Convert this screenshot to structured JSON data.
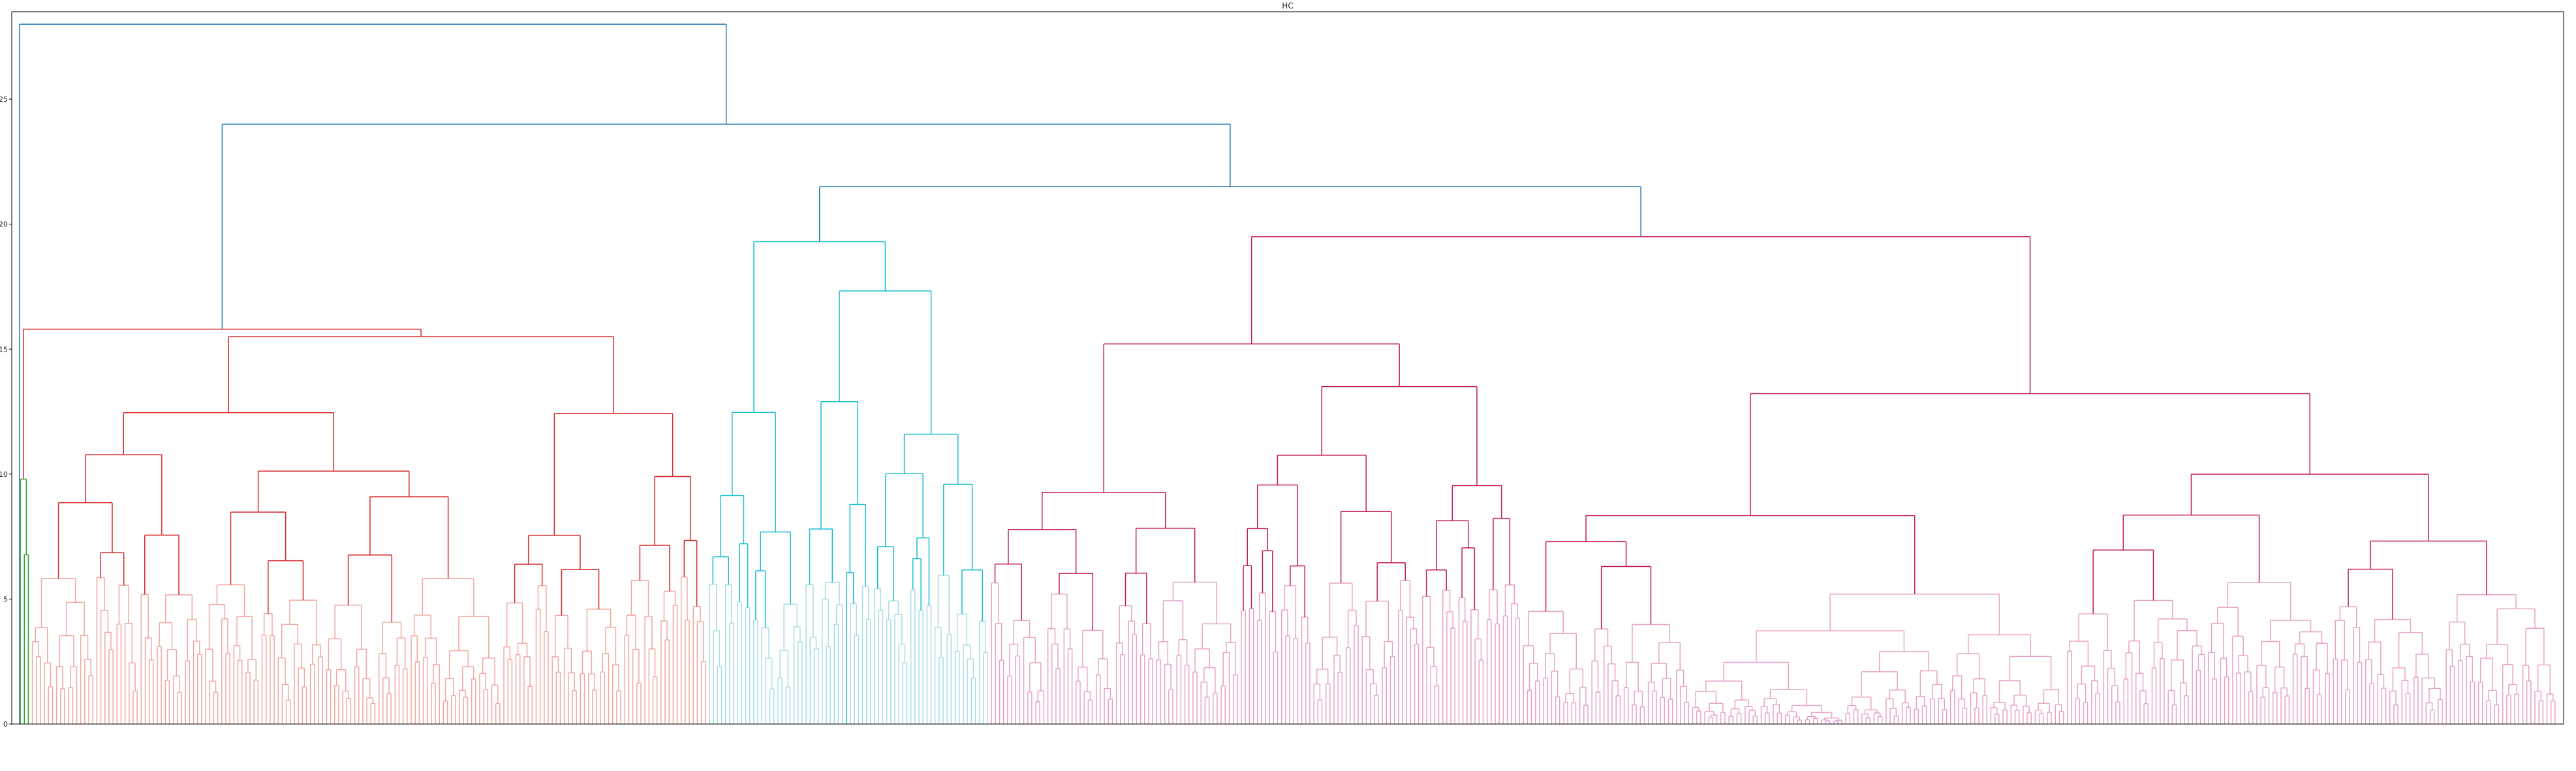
{
  "chart_data": {
    "type": "dendrogram",
    "title": "HC",
    "xlabel": "",
    "ylabel": "",
    "ylim": [
      0,
      28.5
    ],
    "yticks": [
      0,
      5,
      10,
      15,
      20,
      25
    ],
    "grid": false,
    "legend": "none",
    "leaf_count": 630,
    "leaf_labels_note": "",
    "merges": [
      {
        "id": "root",
        "height": 28.0,
        "children": [
          "left_branch",
          "right_branch"
        ],
        "color": "#1f77b4"
      },
      {
        "id": "left_branch",
        "height": 24.0,
        "children": [
          "cluster_red_top",
          "cluster_blue_pink"
        ],
        "color": "#1f77b4"
      },
      {
        "id": "cluster_blue_pink",
        "height": 21.5,
        "children": [
          "cluster_lightblue",
          "cluster_magenta"
        ],
        "color": "#1f77b4"
      },
      {
        "id": "cluster_red_top",
        "height": 15.5,
        "color": "#d62728"
      },
      {
        "id": "cluster_lightblue",
        "height": 19.3,
        "color": "#17becf"
      },
      {
        "id": "cluster_magenta",
        "height": 19.5,
        "color": "#c2185b"
      }
    ],
    "clusters": [
      {
        "name": "green",
        "leaves_from": 0,
        "leaves_to": 2,
        "top_height": 9.8,
        "color": "#2ca02c"
      },
      {
        "name": "red",
        "leaves_from": 3,
        "leaves_to": 170,
        "top_height": 15.5,
        "color": "#d62728"
      },
      {
        "name": "lightblue",
        "leaves_from": 171,
        "leaves_to": 240,
        "top_height": 19.3,
        "color": "#17becf"
      },
      {
        "name": "magenta",
        "leaves_from": 241,
        "leaves_to": 629,
        "top_height": 19.5,
        "color": "#c2185b"
      }
    ],
    "colors": {
      "link_above": "#1f77b4",
      "green": "#2ca02c",
      "red": "#d62728",
      "lightblue": "#17becf",
      "magenta": "#c2185b",
      "frame": "#000000"
    }
  }
}
